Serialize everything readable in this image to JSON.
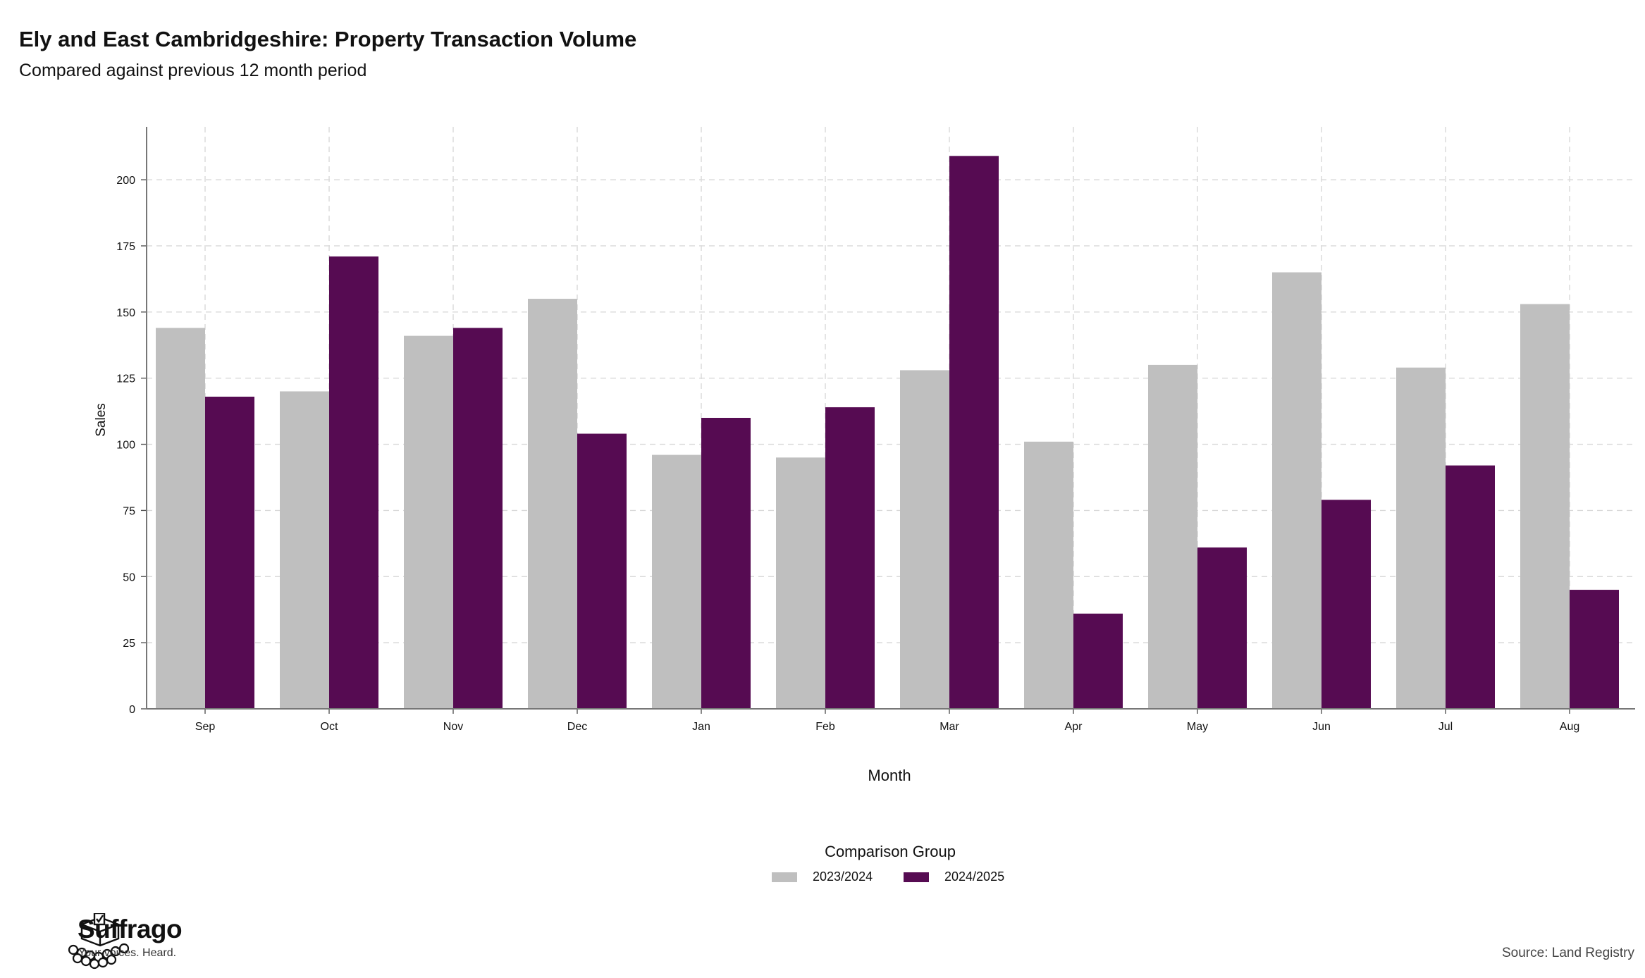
{
  "title": "Ely and East Cambridgeshire: Property Transaction Volume",
  "subtitle": "Compared against previous 12 month period",
  "source": "Source: Land Registry",
  "logo": {
    "name": "Suffrago",
    "tagline": "Your voices. Heard."
  },
  "legend": {
    "title": "Comparison Group",
    "items": [
      {
        "label": "2023/2024",
        "color": "#bfbfbf"
      },
      {
        "label": "2024/2025",
        "color": "#560b52"
      }
    ]
  },
  "chart_data": {
    "type": "bar",
    "xlabel": "Month",
    "ylabel": "Sales",
    "ylim": [
      0,
      220
    ],
    "yticks": [
      0,
      25,
      50,
      75,
      100,
      125,
      150,
      175,
      200
    ],
    "grid": true,
    "legend_position": "bottom",
    "categories": [
      "Sep",
      "Oct",
      "Nov",
      "Dec",
      "Jan",
      "Feb",
      "Mar",
      "Apr",
      "May",
      "Jun",
      "Jul",
      "Aug"
    ],
    "series": [
      {
        "name": "2023/2024",
        "color": "#bfbfbf",
        "values": [
          144,
          120,
          141,
          155,
          96,
          95,
          128,
          101,
          130,
          165,
          129,
          153
        ]
      },
      {
        "name": "2024/2025",
        "color": "#560b52",
        "values": [
          118,
          171,
          144,
          104,
          110,
          114,
          209,
          36,
          61,
          79,
          92,
          45
        ]
      }
    ]
  }
}
